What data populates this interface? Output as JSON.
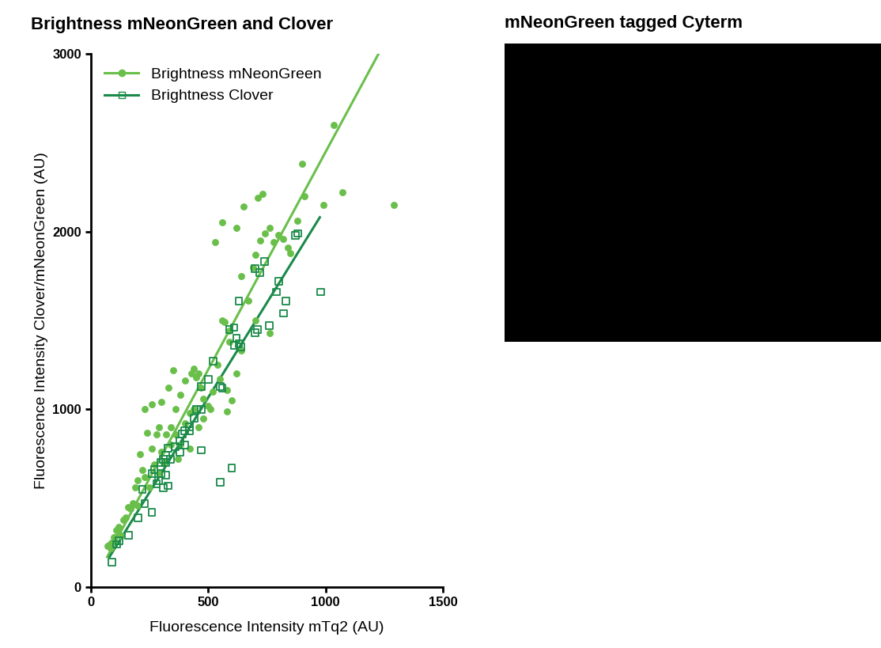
{
  "chart_data": [
    {
      "type": "scatter",
      "title": "Brightness mNeonGreen and Clover",
      "x_label": "Fluorescence Intensity mTq2 (AU)",
      "y_label": "Fluorescence Intensity Clover/mNeonGreen (AU)",
      "xlim": [
        0,
        1500
      ],
      "xticks": [
        0,
        500,
        1000,
        1500
      ],
      "ylim": [
        0,
        3000
      ],
      "yticks": [
        0,
        1000,
        2000,
        3000
      ],
      "legend": "upper left",
      "series": [
        {
          "name": "Brightness mNeonGreen",
          "color": "#6abf4b",
          "marker": "o",
          "line_style": "solid",
          "fit": {
            "x": [
              70,
              1225
            ],
            "y": [
              170,
              3000
            ]
          },
          "x": [
            1035,
            1070,
            1290,
            900,
            910,
            990,
            880,
            730,
            710,
            650,
            620,
            560,
            530,
            760,
            780,
            800,
            820,
            840,
            850,
            740,
            720,
            700,
            690,
            640,
            670,
            700,
            760,
            590,
            570,
            560,
            580,
            600,
            580,
            620,
            640,
            590,
            440,
            430,
            450,
            470,
            480,
            440,
            420,
            400,
            350,
            330,
            300,
            290,
            280,
            260,
            230,
            240,
            210,
            220,
            230,
            250,
            320,
            340,
            360,
            380,
            400,
            380,
            360,
            420,
            300,
            290,
            310,
            200,
            190,
            180,
            170,
            160,
            150,
            140,
            120,
            120,
            110,
            100,
            100,
            90,
            80,
            70,
            85,
            130,
            200,
            260,
            270,
            340,
            370,
            500,
            520,
            510,
            480,
            460,
            540,
            550,
            460
          ],
          "values": [
            2600,
            2220,
            2150,
            2380,
            2200,
            2150,
            2060,
            2210,
            2190,
            2140,
            2020,
            2050,
            1940,
            2020,
            1940,
            1980,
            1960,
            1910,
            1880,
            1990,
            1950,
            1870,
            1800,
            1750,
            1610,
            1500,
            1430,
            1440,
            1490,
            1500,
            1110,
            1050,
            990,
            1200,
            1330,
            1380,
            1230,
            1200,
            1180,
            1120,
            1060,
            1000,
            980,
            1160,
            1220,
            1120,
            1040,
            900,
            860,
            1030,
            1000,
            870,
            750,
            660,
            620,
            560,
            860,
            900,
            860,
            800,
            920,
            1080,
            1000,
            780,
            760,
            640,
            700,
            600,
            560,
            470,
            440,
            450,
            390,
            380,
            340,
            300,
            320,
            280,
            260,
            250,
            240,
            230,
            220,
            290,
            460,
            780,
            690,
            800,
            720,
            1020,
            1100,
            1000,
            950,
            900,
            1250,
            1170,
            1200
          ]
        },
        {
          "name": "Brightness Clover",
          "color": "#1a8a4a",
          "marker": "s",
          "line_style": "solid",
          "fit": {
            "x": [
              80,
              975
            ],
            "y": [
              170,
              2080
            ]
          },
          "x": [
            870,
            880,
            740,
            700,
            720,
            630,
            830,
            800,
            790,
            820,
            980,
            760,
            710,
            700,
            610,
            590,
            620,
            610,
            630,
            640,
            520,
            500,
            550,
            560,
            470,
            450,
            470,
            420,
            440,
            400,
            420,
            390,
            380,
            400,
            360,
            380,
            330,
            320,
            310,
            300,
            320,
            340,
            300,
            320,
            290,
            310,
            330,
            260,
            270,
            220,
            260,
            230,
            200,
            160,
            120,
            110,
            90,
            470,
            550,
            600,
            280
          ],
          "values": [
            1980,
            1990,
            1830,
            1790,
            1770,
            1610,
            1610,
            1720,
            1660,
            1540,
            1660,
            1470,
            1450,
            1430,
            1460,
            1450,
            1400,
            1360,
            1370,
            1350,
            1270,
            1170,
            1130,
            1120,
            1130,
            1000,
            1000,
            900,
            950,
            880,
            880,
            860,
            820,
            800,
            790,
            760,
            780,
            740,
            720,
            700,
            700,
            720,
            640,
            630,
            600,
            560,
            570,
            640,
            660,
            550,
            420,
            470,
            390,
            290,
            260,
            240,
            140,
            770,
            590,
            670,
            580
          ]
        }
      ]
    },
    {
      "type": "image",
      "title": "mNeonGreen tagged Cyterm"
    }
  ]
}
